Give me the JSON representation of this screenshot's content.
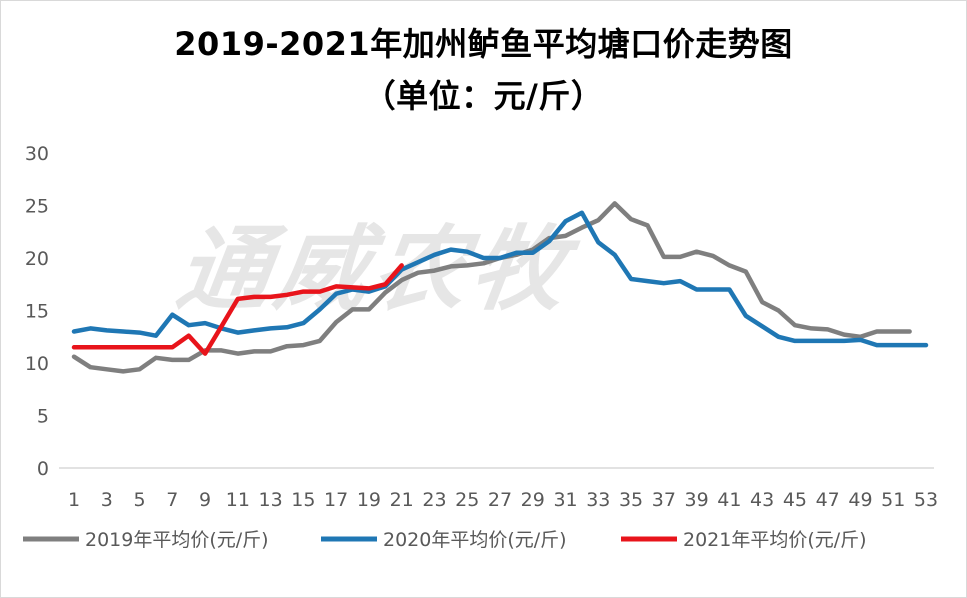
{
  "title": "2019-2021年加州鲈鱼平均塘口价走势图",
  "subtitle": "（单位：元/斤）",
  "watermark": "通威农牧",
  "colors": {
    "s2019": "#7f7f7f",
    "s2020": "#1f77b4",
    "s2021": "#e8141b",
    "axis": "#d9d9d9",
    "text": "#595959"
  },
  "chart_data": {
    "type": "line",
    "title": "2019-2021年加州鲈鱼平均塘口价走势图",
    "subtitle": "（单位：元/斤）",
    "xlabel": "",
    "ylabel": "",
    "ylim": [
      0,
      30
    ],
    "yticks": [
      0,
      5,
      10,
      15,
      20,
      25,
      30
    ],
    "xlim": [
      1,
      53
    ],
    "xticks": [
      1,
      3,
      5,
      7,
      9,
      11,
      13,
      15,
      17,
      19,
      21,
      23,
      25,
      27,
      29,
      31,
      33,
      35,
      37,
      39,
      41,
      43,
      45,
      47,
      49,
      51,
      53
    ],
    "grid": false,
    "legend_position": "bottom",
    "series": [
      {
        "name": "2019年平均价(元/斤)",
        "color": "#7f7f7f",
        "x": [
          1,
          2,
          3,
          4,
          5,
          6,
          7,
          8,
          9,
          10,
          11,
          12,
          13,
          14,
          15,
          16,
          17,
          18,
          19,
          20,
          21,
          22,
          23,
          24,
          25,
          26,
          27,
          28,
          29,
          30,
          31,
          32,
          33,
          34,
          35,
          36,
          37,
          38,
          39,
          40,
          41,
          42,
          43,
          44,
          45,
          46,
          47,
          48,
          49,
          50,
          51,
          52
        ],
        "values": [
          10.6,
          9.6,
          9.4,
          9.2,
          9.4,
          10.5,
          10.3,
          10.3,
          11.2,
          11.2,
          10.9,
          11.1,
          11.1,
          11.6,
          11.7,
          12.1,
          13.9,
          15.1,
          15.1,
          16.7,
          17.9,
          18.6,
          18.8,
          19.2,
          19.3,
          19.5,
          20,
          20.3,
          20.8,
          21.9,
          22.1,
          22.9,
          23.6,
          25.2,
          23.7,
          23.1,
          20.1,
          20.1,
          20.6,
          20.2,
          19.3,
          18.7,
          15.8,
          15,
          13.6,
          13.3,
          13.2,
          12.7,
          12.5,
          13,
          13,
          13
        ]
      },
      {
        "name": "2020年平均价(元/斤)",
        "color": "#1f77b4",
        "x": [
          1,
          2,
          3,
          4,
          5,
          6,
          7,
          8,
          9,
          10,
          11,
          12,
          13,
          14,
          15,
          16,
          17,
          18,
          19,
          20,
          21,
          22,
          23,
          24,
          25,
          26,
          27,
          28,
          29,
          30,
          31,
          32,
          33,
          34,
          35,
          36,
          37,
          38,
          39,
          40,
          41,
          42,
          43,
          44,
          45,
          46,
          47,
          48,
          49,
          50,
          51,
          52,
          53
        ],
        "values": [
          13,
          13.3,
          13.1,
          13,
          12.9,
          12.6,
          14.6,
          13.6,
          13.8,
          13.3,
          12.9,
          13.1,
          13.3,
          13.4,
          13.8,
          15.1,
          16.6,
          17,
          16.8,
          17.3,
          18.9,
          19.6,
          20.3,
          20.8,
          20.6,
          20,
          20,
          20.5,
          20.5,
          21.6,
          23.5,
          24.3,
          21.5,
          20.3,
          18,
          17.8,
          17.6,
          17.8,
          17,
          17,
          17,
          14.5,
          13.5,
          12.5,
          12.1,
          12.1,
          12.1,
          12.1,
          12.2,
          11.7,
          11.7,
          11.7,
          11.7
        ]
      },
      {
        "name": "2021年平均价(元/斤)",
        "color": "#e8141b",
        "x": [
          1,
          2,
          3,
          4,
          5,
          6,
          7,
          8,
          9,
          10,
          11,
          12,
          13,
          14,
          15,
          16,
          17,
          18,
          19,
          20,
          21
        ],
        "values": [
          11.5,
          11.5,
          11.5,
          11.5,
          11.5,
          11.5,
          11.5,
          12.6,
          10.9,
          13.5,
          16.1,
          16.3,
          16.3,
          16.5,
          16.8,
          16.8,
          17.3,
          17.2,
          17.1,
          17.5,
          19.3
        ]
      }
    ]
  }
}
